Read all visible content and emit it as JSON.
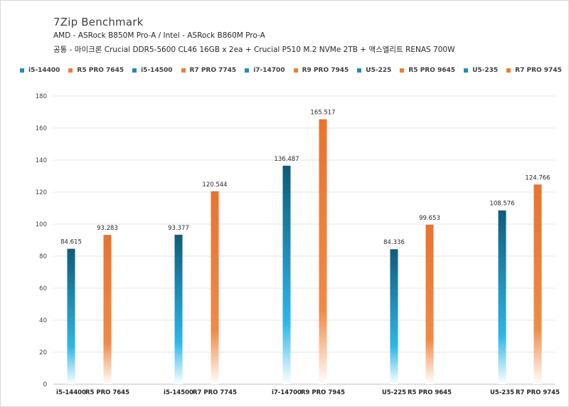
{
  "chart_data": {
    "type": "bar",
    "title": "7Zip Benchmark",
    "subtitle_1": "AMD - ASRock B850M Pro-A  /  Intel - ASRock B860M Pro-A",
    "subtitle_2": "공통 - 마이크론 Crucial DDR5-5600 CL46 16GB x 2ea + Crucial P510 M.2 NVMe 2TB + 맥스엘리트 RENAS 700W",
    "xlabel": "",
    "ylabel": "",
    "ylim": [
      0,
      180
    ],
    "yticks": [
      0,
      20,
      40,
      60,
      80,
      100,
      120,
      140,
      160,
      180
    ],
    "gridlines": true,
    "legend_position": "top",
    "categories": [
      "i5-14400",
      "R5 PRO 7645",
      "i5-14500",
      "R7 PRO 7745",
      "i7-14700",
      "R9 PRO 7945",
      "U5-225",
      "R5 PRO 9645",
      "U5-235",
      "R7 PRO 9745"
    ],
    "values": [
      84.615,
      93.283,
      93.377,
      120.544,
      136.487,
      165.517,
      84.336,
      99.653,
      108.576,
      124.766
    ],
    "value_labels": [
      "84.615",
      "93.283",
      "93.377",
      "120.544",
      "136.487",
      "165.517",
      "84.336",
      "99.653",
      "108.576",
      "124.766"
    ],
    "vendor": [
      "intel",
      "amd",
      "intel",
      "amd",
      "intel",
      "amd",
      "intel",
      "amd",
      "intel",
      "amd"
    ],
    "colors": {
      "intel_top": "#0f5c7a",
      "intel_mid": "#2eb6e8",
      "intel_bottom": "#ffffff",
      "amd_top": "#e9732f",
      "amd_mid": "#f08a45",
      "amd_bottom": "#ffffff",
      "intel_legend": "#1f8fb6",
      "amd_legend": "#ed7d31"
    }
  }
}
